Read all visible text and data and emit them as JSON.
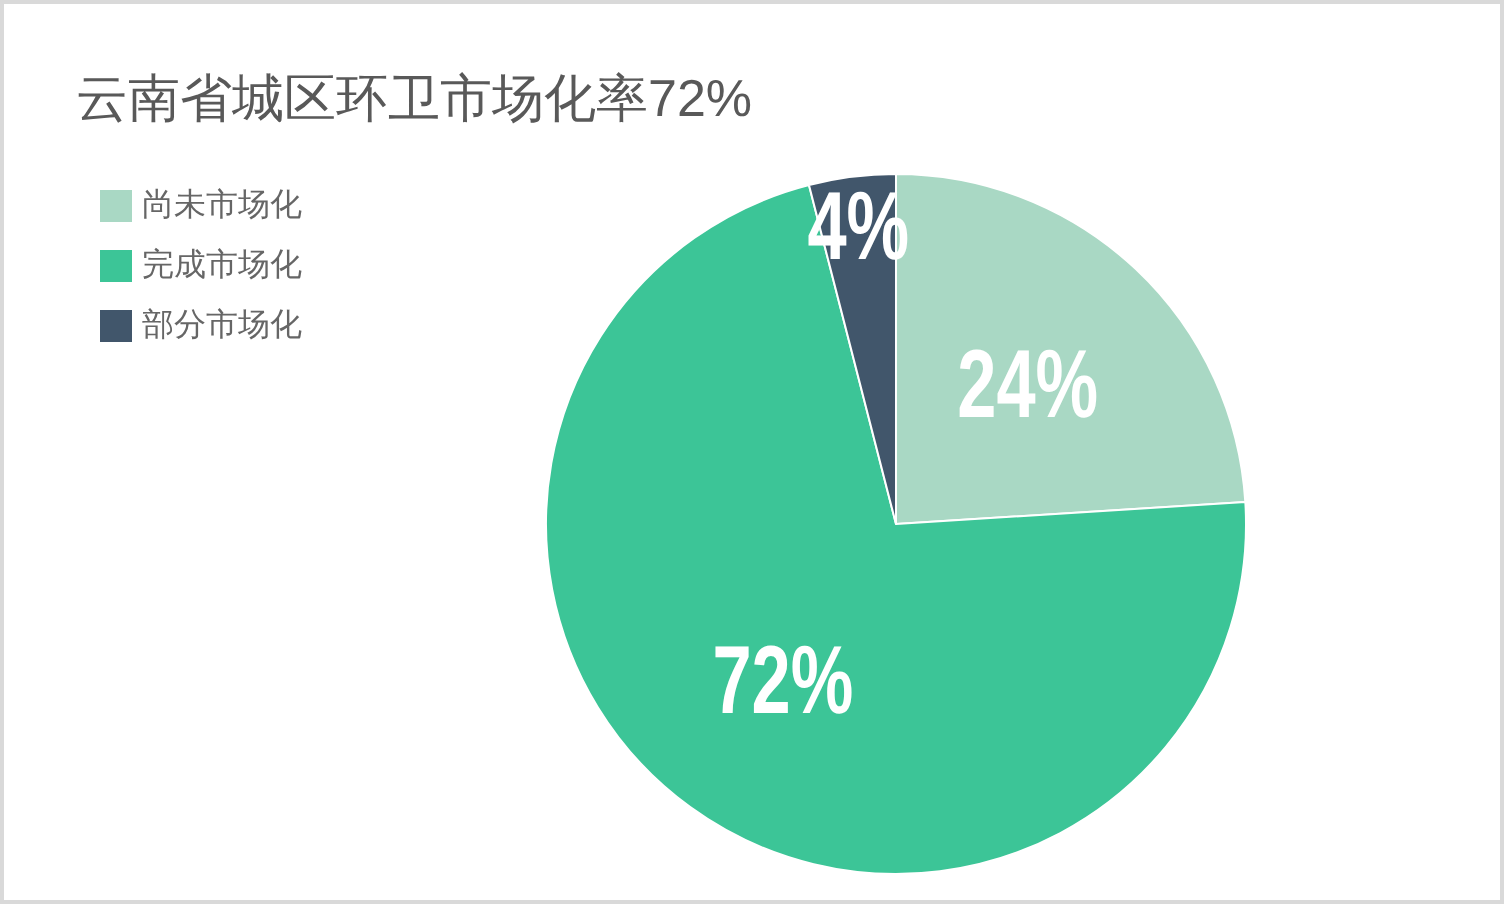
{
  "chart_data": {
    "type": "pie",
    "title": "云南省城区环卫市场化率72%",
    "categories": [
      "尚未市场化",
      "完成市场化",
      "部分市场化"
    ],
    "values": [
      24,
      72,
      4
    ],
    "colors": [
      "#a9d8c4",
      "#3cc597",
      "#41566b"
    ],
    "value_labels": [
      "24%",
      "72%",
      "4%"
    ],
    "legend": "top left"
  }
}
